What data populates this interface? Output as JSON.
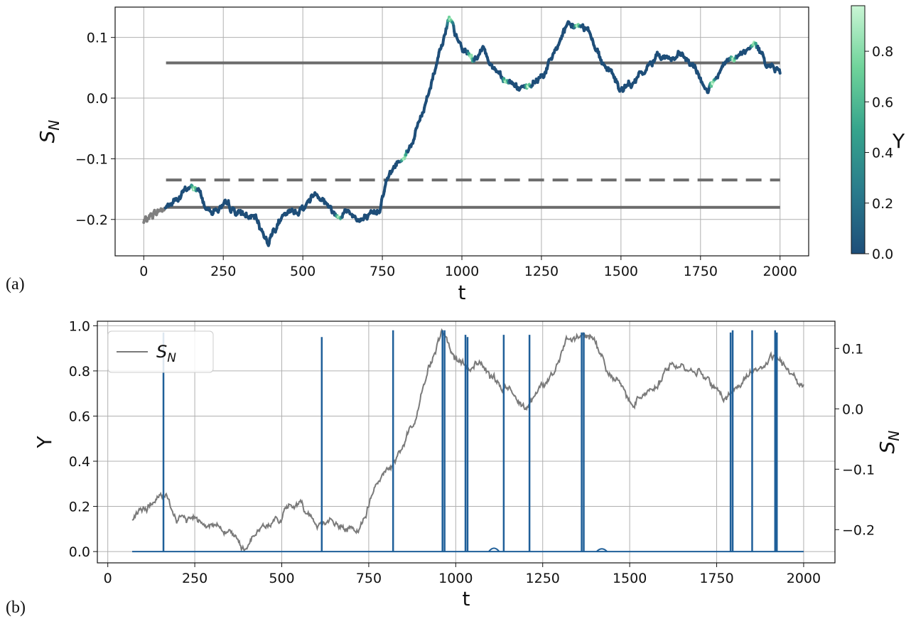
{
  "panels": {
    "a_label": "(a)",
    "b_label": "(b)"
  },
  "chart_data": [
    {
      "type": "line",
      "panel": "(a)",
      "xlabel": "t",
      "ylabel": "S_N",
      "xlim": [
        -90,
        2090
      ],
      "ylim": [
        -0.26,
        0.15
      ],
      "xticks": [
        0,
        250,
        500,
        750,
        1000,
        1250,
        1500,
        1750,
        2000
      ],
      "yticks": [
        -0.2,
        -0.1,
        0.0,
        0.1
      ],
      "ytick_labels": [
        "−0.2",
        "−0.1",
        "0.0",
        "0.1"
      ],
      "grid": true,
      "colorbar": {
        "label": "Y",
        "range": [
          0.0,
          0.98
        ],
        "ticks": [
          0.0,
          0.2,
          0.4,
          0.6,
          0.8
        ],
        "tick_labels": [
          "0.0",
          "0.2",
          "0.4",
          "0.6",
          "0.8"
        ],
        "colors": [
          "#1e4e79",
          "#2a7b8c",
          "#36a48c",
          "#6fd39a",
          "#c9f5d4"
        ]
      },
      "hlines": [
        {
          "y": 0.058,
          "x": [
            70,
            2000
          ],
          "style": "solid",
          "color": "#6b6b6b"
        },
        {
          "y": -0.135,
          "x": [
            70,
            2000
          ],
          "style": "dashed",
          "color": "#6b6b6b"
        },
        {
          "y": -0.18,
          "x": [
            70,
            2000
          ],
          "style": "solid",
          "color": "#6b6b6b"
        }
      ],
      "series_keypoints": {
        "t": [
          0,
          30,
          70,
          100,
          140,
          170,
          200,
          250,
          300,
          350,
          390,
          420,
          450,
          500,
          540,
          560,
          600,
          640,
          680,
          720,
          740,
          760,
          800,
          840,
          880,
          910,
          940,
          960,
          980,
          1000,
          1040,
          1070,
          1100,
          1150,
          1200,
          1240,
          1280,
          1320,
          1360,
          1400,
          1440,
          1470,
          1500,
          1540,
          1580,
          1620,
          1660,
          1700,
          1740,
          1770,
          1800,
          1840,
          1880,
          1920,
          1960,
          2000
        ],
        "values": [
          -0.205,
          -0.19,
          -0.18,
          -0.17,
          -0.148,
          -0.15,
          -0.185,
          -0.18,
          -0.19,
          -0.2,
          -0.235,
          -0.205,
          -0.195,
          -0.18,
          -0.155,
          -0.16,
          -0.19,
          -0.185,
          -0.2,
          -0.2,
          -0.185,
          -0.135,
          -0.105,
          -0.075,
          -0.02,
          0.04,
          0.1,
          0.13,
          0.1,
          0.08,
          0.065,
          0.08,
          0.05,
          0.03,
          0.01,
          0.03,
          0.06,
          0.11,
          0.12,
          0.115,
          0.06,
          0.045,
          0.01,
          0.025,
          0.045,
          0.075,
          0.065,
          0.065,
          0.04,
          0.015,
          0.03,
          0.06,
          0.07,
          0.085,
          0.06,
          0.04
        ]
      },
      "color_series": "Y",
      "high_Y_t": [
        160,
        615,
        820,
        965,
        1030,
        1140,
        1210,
        1365,
        1790,
        1855,
        1920
      ]
    },
    {
      "type": "line",
      "panel": "(b)",
      "xlabel": "t",
      "ylabel": "Y",
      "ylabel_right": "S_N",
      "xlim": [
        -30,
        2090
      ],
      "ylim": [
        -0.05,
        1.02
      ],
      "ylim_right": [
        -0.255,
        0.145
      ],
      "xticks": [
        0,
        250,
        500,
        750,
        1000,
        1250,
        1500,
        1750,
        2000
      ],
      "yticks": [
        0.0,
        0.2,
        0.4,
        0.6,
        0.8,
        1.0
      ],
      "ytick_labels": [
        "0.0",
        "0.2",
        "0.4",
        "0.6",
        "0.8",
        "1.0"
      ],
      "yticks_right": [
        -0.2,
        -0.1,
        0.0,
        0.1
      ],
      "ytick_labels_right": [
        "−0.2",
        "−0.1",
        "0.0",
        "0.1"
      ],
      "grid": true,
      "legend": {
        "position": "top-left",
        "entries": [
          "S_N"
        ]
      },
      "series": [
        {
          "name": "S_N",
          "axis": "right",
          "color": "#7a7a7a"
        },
        {
          "axis": "left",
          "color": "#1f5f99",
          "baseline": 0.0,
          "spikes": [
            {
              "t": 160,
              "y": 0.97
            },
            {
              "t": 615,
              "y": 0.95
            },
            {
              "t": 820,
              "y": 0.98
            },
            {
              "t": 962,
              "y": 0.98
            },
            {
              "t": 968,
              "y": 0.98
            },
            {
              "t": 1028,
              "y": 0.96
            },
            {
              "t": 1034,
              "y": 0.95
            },
            {
              "t": 1138,
              "y": 0.96
            },
            {
              "t": 1212,
              "y": 0.96
            },
            {
              "t": 1362,
              "y": 0.97
            },
            {
              "t": 1368,
              "y": 0.97
            },
            {
              "t": 1790,
              "y": 0.97
            },
            {
              "t": 1796,
              "y": 0.98
            },
            {
              "t": 1852,
              "y": 0.98
            },
            {
              "t": 1918,
              "y": 0.98
            },
            {
              "t": 1923,
              "y": 0.97
            }
          ],
          "small_bumps": [
            {
              "t": 1110,
              "y": 0.01
            },
            {
              "t": 1420,
              "y": 0.008
            }
          ]
        }
      ]
    }
  ]
}
